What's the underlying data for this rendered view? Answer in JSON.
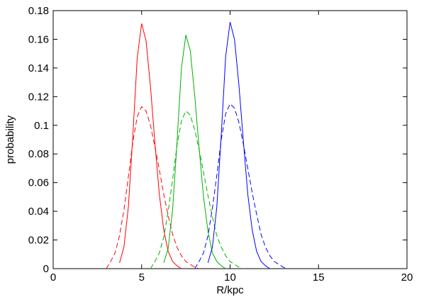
{
  "chart_data": {
    "type": "line",
    "xlabel": "R/kpc",
    "ylabel": "probability",
    "xlim": [
      0,
      20
    ],
    "xticks": [
      0,
      5,
      10,
      15,
      20
    ],
    "ylim": [
      0,
      0.18
    ],
    "yticks": [
      0,
      0.02,
      0.04,
      0.06,
      0.08,
      0.1,
      0.12,
      0.14,
      0.16,
      0.18
    ],
    "grid": false,
    "series": [
      {
        "color": "#ff0000",
        "dashed": false,
        "x": [
          3.75,
          4,
          4.25,
          4.5,
          4.75,
          5,
          5.25,
          5.5,
          5.75,
          6,
          6.25,
          6.5,
          6.75,
          7,
          7.25
        ],
        "values": [
          0.004,
          0.015,
          0.043,
          0.092,
          0.147,
          0.171,
          0.159,
          0.127,
          0.088,
          0.052,
          0.027,
          0.012,
          0.005,
          0.002,
          0
        ]
      },
      {
        "color": "#ff0000",
        "dashed": true,
        "x": [
          3,
          3.25,
          3.5,
          3.75,
          4,
          4.25,
          4.5,
          4.75,
          5,
          5.25,
          5.5,
          5.75,
          6,
          6.25,
          6.5,
          6.75,
          7,
          7.25,
          7.5,
          7.75,
          8,
          8.25
        ],
        "values": [
          0,
          0.005,
          0.011,
          0.023,
          0.041,
          0.064,
          0.088,
          0.106,
          0.113,
          0.11,
          0.1,
          0.085,
          0.069,
          0.052,
          0.037,
          0.024,
          0.015,
          0.009,
          0.005,
          0.003,
          0.001,
          0
        ]
      },
      {
        "color": "#00b000",
        "dashed": false,
        "x": [
          6.25,
          6.5,
          6.75,
          7,
          7.25,
          7.5,
          7.75,
          8,
          8.25,
          8.5,
          8.75,
          9,
          9.25,
          9.5,
          9.75
        ],
        "values": [
          0.004,
          0.014,
          0.041,
          0.088,
          0.14,
          0.163,
          0.152,
          0.121,
          0.084,
          0.05,
          0.026,
          0.011,
          0.005,
          0.002,
          0
        ]
      },
      {
        "color": "#00b000",
        "dashed": true,
        "x": [
          5.5,
          5.75,
          6,
          6.25,
          6.5,
          6.75,
          7,
          7.25,
          7.5,
          7.75,
          8,
          8.25,
          8.5,
          8.75,
          9,
          9.25,
          9.5,
          9.75,
          10,
          10.25,
          10.5,
          10.75
        ],
        "values": [
          0,
          0.005,
          0.011,
          0.022,
          0.04,
          0.062,
          0.086,
          0.103,
          0.11,
          0.107,
          0.097,
          0.083,
          0.067,
          0.051,
          0.036,
          0.023,
          0.015,
          0.009,
          0.005,
          0.003,
          0.001,
          0
        ]
      },
      {
        "color": "#0000ff",
        "dashed": false,
        "x": [
          8.75,
          9,
          9.25,
          9.5,
          9.75,
          10,
          10.25,
          10.5,
          10.75,
          11,
          11.25,
          11.5,
          11.75,
          12,
          12.25
        ],
        "values": [
          0.004,
          0.015,
          0.043,
          0.093,
          0.148,
          0.172,
          0.16,
          0.128,
          0.089,
          0.052,
          0.027,
          0.012,
          0.005,
          0.002,
          0
        ]
      },
      {
        "color": "#0000ff",
        "dashed": true,
        "x": [
          8,
          8.25,
          8.5,
          8.75,
          9,
          9.25,
          9.5,
          9.75,
          10,
          10.25,
          10.5,
          10.75,
          11,
          11.25,
          11.5,
          11.75,
          12,
          12.25,
          12.5,
          12.75,
          13,
          13.25
        ],
        "values": [
          0,
          0.005,
          0.011,
          0.023,
          0.042,
          0.065,
          0.09,
          0.108,
          0.115,
          0.112,
          0.102,
          0.087,
          0.07,
          0.053,
          0.038,
          0.024,
          0.015,
          0.009,
          0.005,
          0.003,
          0.001,
          0
        ]
      }
    ]
  }
}
